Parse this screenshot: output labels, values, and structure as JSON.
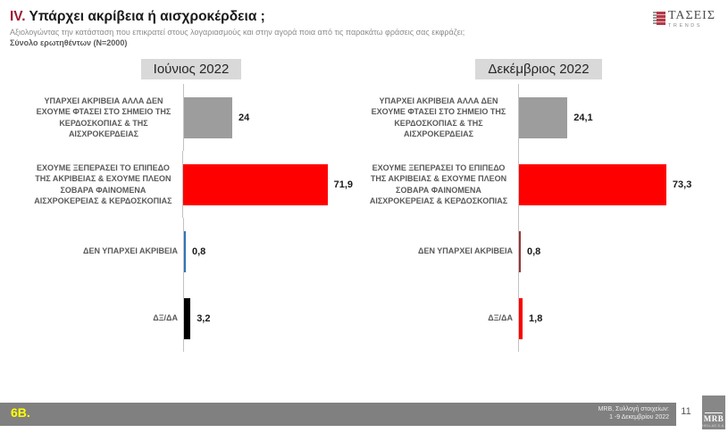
{
  "header": {
    "section_number": "IV.",
    "title": "Υπάρχει ακρίβεια ή αισχροκέρδεια ;",
    "subtitle": "Αξιολογώντας την κατάσταση που επικρατεί στους λογαριασμούς και στην αγορά ποια από τις παρακάτω φράσεις σας εκφράζει;",
    "sample": "Σύνολο ερωτηθέντων (N=2000)",
    "brand": {
      "name": "ΤΑΣΕΙΣ",
      "tagline": "TRENDS"
    }
  },
  "chart_data": [
    {
      "type": "bar",
      "title": "Ιούνιος 2022",
      "orientation": "horizontal",
      "xlim": [
        0,
        80
      ],
      "grid": false,
      "legend": "none",
      "categories": [
        "ΥΠΑΡΧΕΙ ΑΚΡΙΒΕΙΑ ΑΛΛΑ ΔΕΝ ΕΧΟΥΜΕ ΦΤΑΣΕΙ ΣΤΟ ΣΗΜΕΙΟ ΤΗΣ ΚΕΡΔΟΣΚΟΠΙΑΣ & ΤΗΣ ΑΙΣΧΡΟΚΕΡΔΕΙΑΣ",
        "ΕΧΟΥΜΕ ΞΕΠΕΡΑΣΕΙ ΤΟ ΕΠΙΠΕΔΟ ΤΗΣ ΑΚΡΙΒΕΙΑΣ & ΕΧΟΥΜΕ ΠΛΕΟΝ ΣΟΒΑΡΑ ΦΑΙΝΟΜΕΝΑ ΑΙΣΧΡΟΚΕΡΕΙΑΣ & ΚΕΡΔΟΣΚΟΠΙΑΣ",
        "ΔΕΝ ΥΠΑΡΧΕΙ ΑΚΡΙΒΕΙΑ",
        "ΔΞ/ΔΑ"
      ],
      "values": [
        24,
        71.9,
        0.8,
        3.2
      ],
      "value_labels": [
        "24",
        "71,9",
        "0,8",
        "3,2"
      ],
      "bar_colors": [
        "#9d9d9d",
        "#fe0000",
        "#2e75b6",
        "#000000"
      ]
    },
    {
      "type": "bar",
      "title": "Δεκέμβριος 2022",
      "orientation": "horizontal",
      "xlim": [
        0,
        80
      ],
      "grid": false,
      "legend": "none",
      "categories": [
        "ΥΠΑΡΧΕΙ ΑΚΡΙΒΕΙΑ ΑΛΛΑ ΔΕΝ ΕΧΟΥΜΕ ΦΤΑΣΕΙ ΣΤΟ ΣΗΜΕΙΟ ΤΗΣ ΚΕΡΔΟΣΚΟΠΙΑΣ & ΤΗΣ ΑΙΣΧΡΟΚΕΡΔΕΙΑΣ",
        "ΕΧΟΥΜΕ ΞΕΠΕΡΑΣΕΙ ΤΟ ΕΠΙΠΕΔΟ ΤΗΣ ΑΚΡΙΒΕΙΑΣ & ΕΧΟΥΜΕ ΠΛΕΟΝ ΣΟΒΑΡΑ ΦΑΙΝΟΜΕΝΑ ΑΙΣΧΡΟΚΕΡΕΙΑΣ & ΚΕΡΔΟΣΚΟΠΙΑΣ",
        "ΔΕΝ ΥΠΑΡΧΕΙ ΑΚΡΙΒΕΙΑ",
        "ΔΞ/ΔΑ"
      ],
      "values": [
        24.1,
        73.3,
        0.8,
        1.8
      ],
      "value_labels": [
        "24,1",
        "73,3",
        "0,8",
        "1,8"
      ],
      "bar_colors": [
        "#9d9d9d",
        "#fe0000",
        "#953735",
        "#fe0000"
      ]
    }
  ],
  "colors": {
    "accent_red": "#fe0000",
    "accent_gray": "#9d9d9d",
    "accent_blue": "#2e75b6",
    "accent_darkred": "#953735",
    "title_roman": "#9b1b33",
    "footer_bar": "#808080",
    "slide_code_yellow": "#ffff00"
  },
  "footer": {
    "slide_code": "6Β.",
    "source_line1": "MRB, Συλλογή στοιχείων:",
    "source_line2": "1 -9 Δεκεμβρίου 2022",
    "page_number": "11",
    "logo": {
      "name": "MRB",
      "subtext": "HELLAS S.A."
    }
  }
}
